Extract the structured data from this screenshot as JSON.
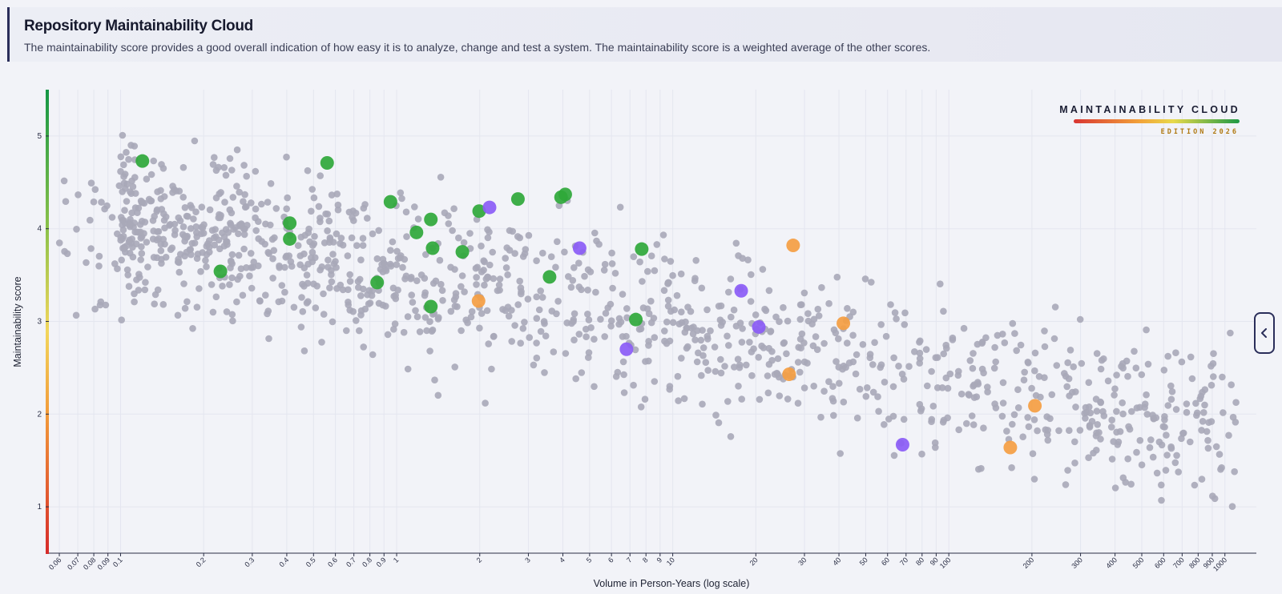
{
  "header": {
    "title": "Repository Maintainability Cloud",
    "description": "The maintainability score provides a good overall indication of how easy it is to analyze, change and test a system. The maintainability score is a weighted average of the other scores."
  },
  "brand": {
    "title": "MAINTAINABILITY CLOUD",
    "edition": "EDITION 2026"
  },
  "chart_data": {
    "type": "scatter",
    "xlabel": "Volume in Person-Years (log scale)",
    "ylabel": "Maintainability score",
    "x_scale": "log",
    "xlim": [
      0.055,
      1300
    ],
    "ylim": [
      0.5,
      5.5
    ],
    "x_ticks": [
      0.06,
      0.07,
      0.08,
      0.09,
      0.1,
      0.2,
      0.3,
      0.4,
      0.5,
      0.6,
      0.7,
      0.8,
      0.9,
      1,
      2,
      3,
      4,
      5,
      6,
      7,
      8,
      9,
      10,
      20,
      30,
      40,
      50,
      60,
      70,
      80,
      90,
      100,
      200,
      300,
      400,
      500,
      600,
      700,
      800,
      900,
      1000
    ],
    "y_ticks": [
      1,
      2,
      3,
      4,
      5
    ],
    "grid": true,
    "background_points": {
      "color": "#a9a9b8",
      "count": 1300
    },
    "series": [
      {
        "color": "#2fa83a",
        "points": [
          {
            "x": 0.12,
            "y": 4.73
          },
          {
            "x": 0.23,
            "y": 3.54
          },
          {
            "x": 0.41,
            "y": 4.06
          },
          {
            "x": 0.41,
            "y": 3.89
          },
          {
            "x": 0.56,
            "y": 4.71
          },
          {
            "x": 0.85,
            "y": 3.42
          },
          {
            "x": 0.95,
            "y": 4.29
          },
          {
            "x": 1.18,
            "y": 3.96
          },
          {
            "x": 1.33,
            "y": 4.1
          },
          {
            "x": 1.35,
            "y": 3.79
          },
          {
            "x": 1.33,
            "y": 3.16
          },
          {
            "x": 1.73,
            "y": 3.75
          },
          {
            "x": 1.99,
            "y": 4.19
          },
          {
            "x": 2.75,
            "y": 4.32
          },
          {
            "x": 3.58,
            "y": 3.48
          },
          {
            "x": 3.94,
            "y": 4.34
          },
          {
            "x": 4.08,
            "y": 4.37
          },
          {
            "x": 7.35,
            "y": 3.02
          },
          {
            "x": 7.72,
            "y": 3.78
          }
        ]
      },
      {
        "color": "#8b5cf6",
        "points": [
          {
            "x": 2.17,
            "y": 4.23
          },
          {
            "x": 4.6,
            "y": 3.79
          },
          {
            "x": 6.8,
            "y": 2.7
          },
          {
            "x": 17.7,
            "y": 3.33
          },
          {
            "x": 20.5,
            "y": 2.94
          },
          {
            "x": 68,
            "y": 1.67
          }
        ]
      },
      {
        "color": "#f59e42",
        "points": [
          {
            "x": 1.98,
            "y": 3.22
          },
          {
            "x": 26.4,
            "y": 2.43
          },
          {
            "x": 27.3,
            "y": 3.82
          },
          {
            "x": 41.5,
            "y": 2.98
          },
          {
            "x": 167,
            "y": 1.64
          },
          {
            "x": 205,
            "y": 2.09
          }
        ]
      }
    ]
  }
}
